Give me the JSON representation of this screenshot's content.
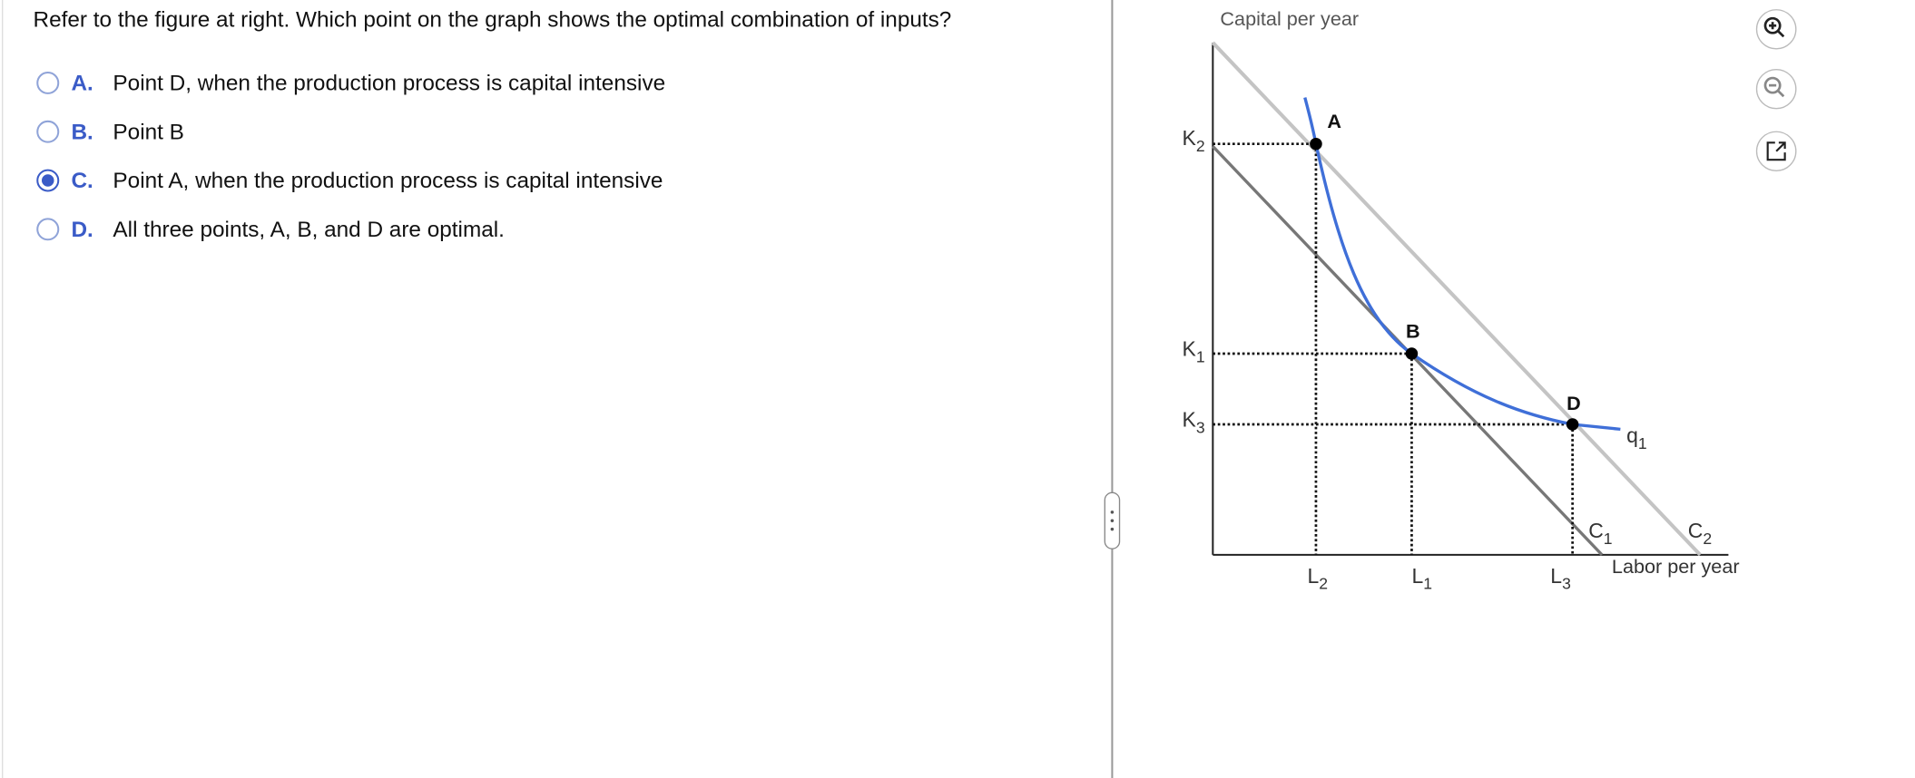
{
  "question": "Refer to the figure at right. Which point on the graph shows the optimal combination of inputs?",
  "options": [
    {
      "letter": "A.",
      "text": "Point D, when the production process is capital intensive",
      "selected": false
    },
    {
      "letter": "B.",
      "text": "Point B",
      "selected": false
    },
    {
      "letter": "C.",
      "text": "Point A, when the production process is capital intensive",
      "selected": true
    },
    {
      "letter": "D.",
      "text": "All three points, A, B, and D are optimal.",
      "selected": false
    }
  ],
  "figure": {
    "y_axis_label": "Capital per year",
    "x_axis_label": "Labor per year",
    "points": [
      "A",
      "B",
      "D"
    ],
    "labels": [
      {
        "base": "K",
        "sub": "2"
      },
      {
        "base": "K",
        "sub": "1"
      },
      {
        "base": "K",
        "sub": "3"
      },
      {
        "base": "L",
        "sub": "2"
      },
      {
        "base": "L",
        "sub": "1"
      },
      {
        "base": "L",
        "sub": "3"
      },
      {
        "base": "C",
        "sub": "1"
      },
      {
        "base": "C",
        "sub": "2"
      },
      {
        "base": "q",
        "sub": "1"
      }
    ]
  }
}
